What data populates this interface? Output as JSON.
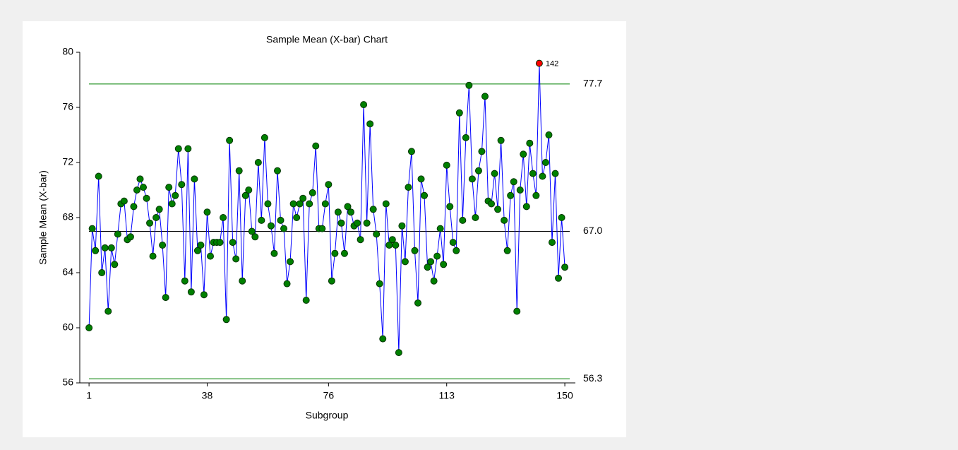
{
  "chart_data": {
    "type": "line",
    "title": "Sample Mean (X-bar) Chart",
    "x_label": "Subgroup",
    "y_label": "Sample Mean (X-bar)",
    "x": [
      1,
      2,
      3,
      4,
      5,
      6,
      7,
      8,
      9,
      10,
      11,
      12,
      13,
      14,
      15,
      16,
      17,
      18,
      19,
      20,
      21,
      22,
      23,
      24,
      25,
      26,
      27,
      28,
      29,
      30,
      31,
      32,
      33,
      34,
      35,
      36,
      37,
      38,
      39,
      40,
      41,
      42,
      43,
      44,
      45,
      46,
      47,
      48,
      49,
      50,
      51,
      52,
      53,
      54,
      55,
      56,
      57,
      58,
      59,
      60,
      61,
      62,
      63,
      64,
      65,
      66,
      67,
      68,
      69,
      70,
      71,
      72,
      73,
      74,
      75,
      76,
      77,
      78,
      79,
      80,
      81,
      82,
      83,
      84,
      85,
      86,
      87,
      88,
      89,
      90,
      91,
      92,
      93,
      94,
      95,
      96,
      97,
      98,
      99,
      100,
      101,
      102,
      103,
      104,
      105,
      106,
      107,
      108,
      109,
      110,
      111,
      112,
      113,
      114,
      115,
      116,
      117,
      118,
      119,
      120,
      121,
      122,
      123,
      124,
      125,
      126,
      127,
      128,
      129,
      130,
      131,
      132,
      133,
      134,
      135,
      136,
      137,
      138,
      139,
      140,
      141,
      142,
      143,
      144,
      145,
      146,
      147,
      148,
      149,
      150
    ],
    "series": [
      {
        "color": "#0000ff",
        "marker_color": "#008000",
        "values": [
          60.0,
          67.2,
          65.6,
          71.0,
          64.0,
          65.8,
          61.2,
          65.8,
          64.6,
          66.8,
          69.0,
          69.2,
          66.4,
          66.6,
          68.8,
          70.0,
          70.8,
          70.2,
          69.4,
          67.6,
          65.2,
          68.0,
          68.6,
          66.0,
          62.2,
          70.2,
          69.0,
          69.6,
          73.0,
          70.4,
          63.4,
          73.0,
          62.6,
          70.8,
          65.6,
          66.0,
          62.4,
          68.4,
          65.2,
          66.2,
          66.2,
          66.2,
          68.0,
          60.6,
          73.6,
          66.2,
          65.0,
          71.4,
          63.4,
          69.6,
          70.0,
          67.0,
          66.6,
          72.0,
          67.8,
          73.8,
          69.0,
          67.4,
          65.4,
          71.4,
          67.8,
          67.2,
          63.2,
          64.8,
          69.0,
          68.0,
          69.0,
          69.4,
          62.0,
          69.0,
          69.8,
          73.2,
          67.2,
          67.2,
          69.0,
          70.4,
          63.4,
          65.4,
          68.4,
          67.6,
          65.4,
          68.8,
          68.4,
          67.4,
          67.6,
          66.4,
          76.2,
          67.6,
          74.8,
          68.6,
          66.8,
          63.2,
          59.2,
          69.0,
          66.0,
          66.4,
          66.0,
          58.2,
          67.4,
          64.8,
          70.2,
          72.8,
          65.6,
          61.8,
          70.8,
          69.6,
          64.4,
          64.8,
          63.4,
          65.2,
          67.2,
          64.6,
          71.8,
          68.8,
          66.2,
          65.6,
          75.6,
          67.8,
          73.8,
          77.6,
          70.8,
          68.0,
          71.4,
          72.8,
          76.8,
          69.2,
          69.0,
          71.2,
          68.6,
          73.6,
          67.8,
          65.6,
          69.6,
          70.6,
          61.2,
          70.0,
          72.6,
          68.8,
          73.4,
          71.2,
          69.6,
          79.2,
          71.0,
          72.0,
          74.0,
          66.2,
          71.2,
          63.6,
          68.0,
          64.4
        ]
      }
    ],
    "flagged": [
      142
    ],
    "flagged_color": "#ff0000",
    "control_lines": [
      {
        "value": 77.7,
        "label": "77.7",
        "color": "#008000"
      },
      {
        "value": 67.0,
        "label": "67.0",
        "color": "#000000"
      },
      {
        "value": 56.3,
        "label": "56.3",
        "color": "#008000"
      }
    ],
    "xlim": [
      -1.9,
      153.3
    ],
    "ylim": [
      56,
      80
    ],
    "xticks": [
      1,
      38,
      76,
      113,
      150
    ],
    "yticks": [
      56,
      60,
      64,
      68,
      72,
      76,
      80
    ]
  }
}
